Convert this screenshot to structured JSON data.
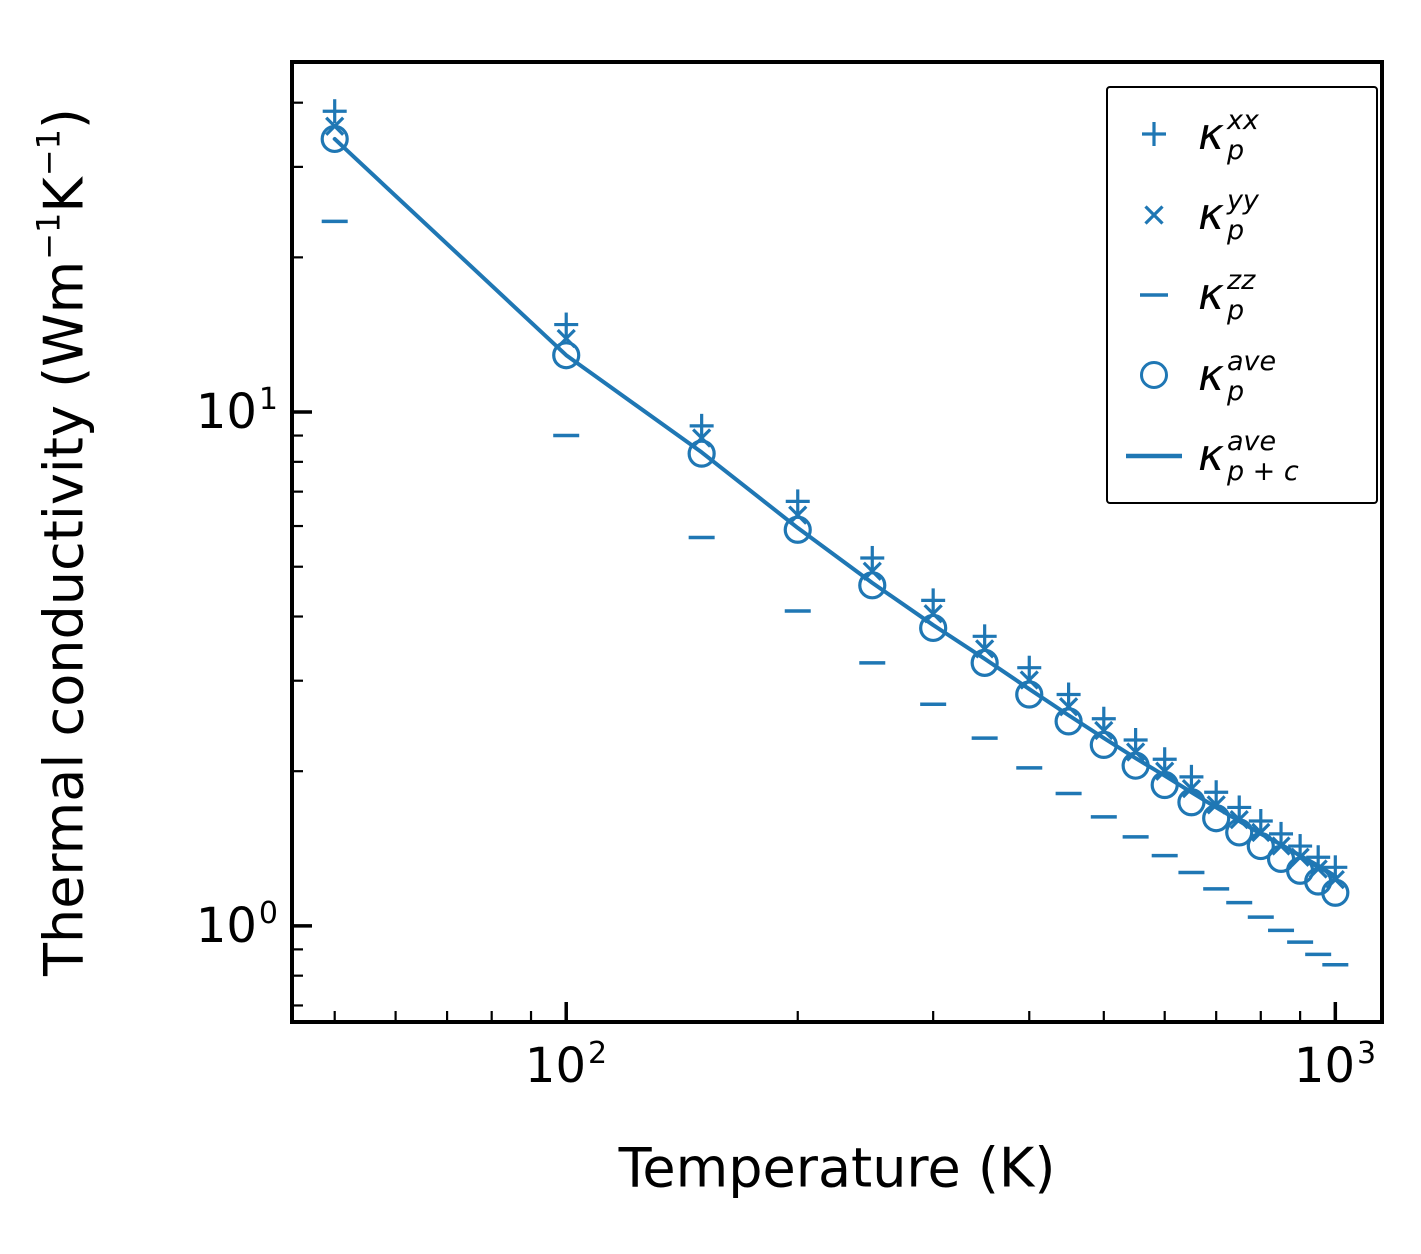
{
  "figure": {
    "background": "#ffffff"
  },
  "axes": {
    "xlabel": "Temperature (K)",
    "ylabel": {
      "prefix": "Thermal conductivity (Wm",
      "sup1": "−1",
      "mid": "K",
      "sup2": "−1",
      "suffix": ")"
    },
    "xticks": [
      {
        "base": "10",
        "exp": "2",
        "value": 100
      },
      {
        "base": "10",
        "exp": "3",
        "value": 1000
      }
    ],
    "yticks": [
      {
        "base": "10",
        "exp": "1",
        "value": 10
      },
      {
        "base": "10",
        "exp": "0",
        "value": 1
      }
    ]
  },
  "legend": {
    "entries": [
      {
        "marker": "plus",
        "kappa": "κ",
        "sub": "p",
        "sup": "xx"
      },
      {
        "marker": "x",
        "kappa": "κ",
        "sub": "p",
        "sup": "yy"
      },
      {
        "marker": "hline",
        "kappa": "κ",
        "sub": "p",
        "sup": "zz"
      },
      {
        "marker": "circle",
        "kappa": "κ",
        "sub": "p",
        "sup": "ave"
      },
      {
        "marker": "line",
        "kappa": "κ",
        "sub": "p + c",
        "sup": "ave"
      }
    ]
  },
  "chart_data": {
    "type": "scatter",
    "title": "",
    "xlabel": "Temperature (K)",
    "ylabel": "Thermal conductivity (Wm⁻¹K⁻¹)",
    "x_scale": "log",
    "y_scale": "log",
    "xlim": [
      44,
      1150
    ],
    "ylim": [
      0.65,
      48
    ],
    "grid": false,
    "legend_position": "upper right",
    "color": "#1f77b4",
    "x": [
      50,
      100,
      150,
      200,
      250,
      300,
      350,
      400,
      450,
      500,
      550,
      600,
      650,
      700,
      750,
      800,
      850,
      900,
      950,
      1000
    ],
    "series": [
      {
        "name": "kappa_p_xx",
        "label": "κ_p^xx",
        "marker": "plus",
        "values": [
          38.5,
          14.8,
          9.4,
          6.7,
          5.2,
          4.3,
          3.66,
          3.18,
          2.82,
          2.53,
          2.3,
          2.11,
          1.95,
          1.82,
          1.7,
          1.6,
          1.51,
          1.43,
          1.36,
          1.3
        ]
      },
      {
        "name": "kappa_p_yy",
        "label": "κ_p^yy",
        "marker": "x",
        "values": [
          36.0,
          13.9,
          8.9,
          6.3,
          4.9,
          4.05,
          3.46,
          3.01,
          2.67,
          2.4,
          2.18,
          2.0,
          1.85,
          1.72,
          1.61,
          1.52,
          1.43,
          1.36,
          1.29,
          1.23
        ]
      },
      {
        "name": "kappa_p_zz",
        "label": "κ_p^zz",
        "marker": "hline",
        "values": [
          23.5,
          9.0,
          5.7,
          4.1,
          3.25,
          2.7,
          2.32,
          2.03,
          1.81,
          1.63,
          1.49,
          1.37,
          1.27,
          1.18,
          1.11,
          1.04,
          0.98,
          0.93,
          0.88,
          0.84
        ]
      },
      {
        "name": "kappa_p_ave",
        "label": "κ_p^ave",
        "marker": "circle",
        "values": [
          34.0,
          12.9,
          8.3,
          5.9,
          4.6,
          3.8,
          3.25,
          2.82,
          2.5,
          2.25,
          2.05,
          1.88,
          1.74,
          1.62,
          1.52,
          1.43,
          1.35,
          1.28,
          1.22,
          1.16
        ]
      },
      {
        "name": "kappa_p_plus_c_ave",
        "label": "κ_p+c^ave",
        "marker": "line",
        "values": [
          34.0,
          12.9,
          8.35,
          5.95,
          4.65,
          3.85,
          3.31,
          2.89,
          2.57,
          2.32,
          2.12,
          1.96,
          1.82,
          1.7,
          1.6,
          1.51,
          1.44,
          1.37,
          1.31,
          1.25
        ]
      }
    ]
  }
}
